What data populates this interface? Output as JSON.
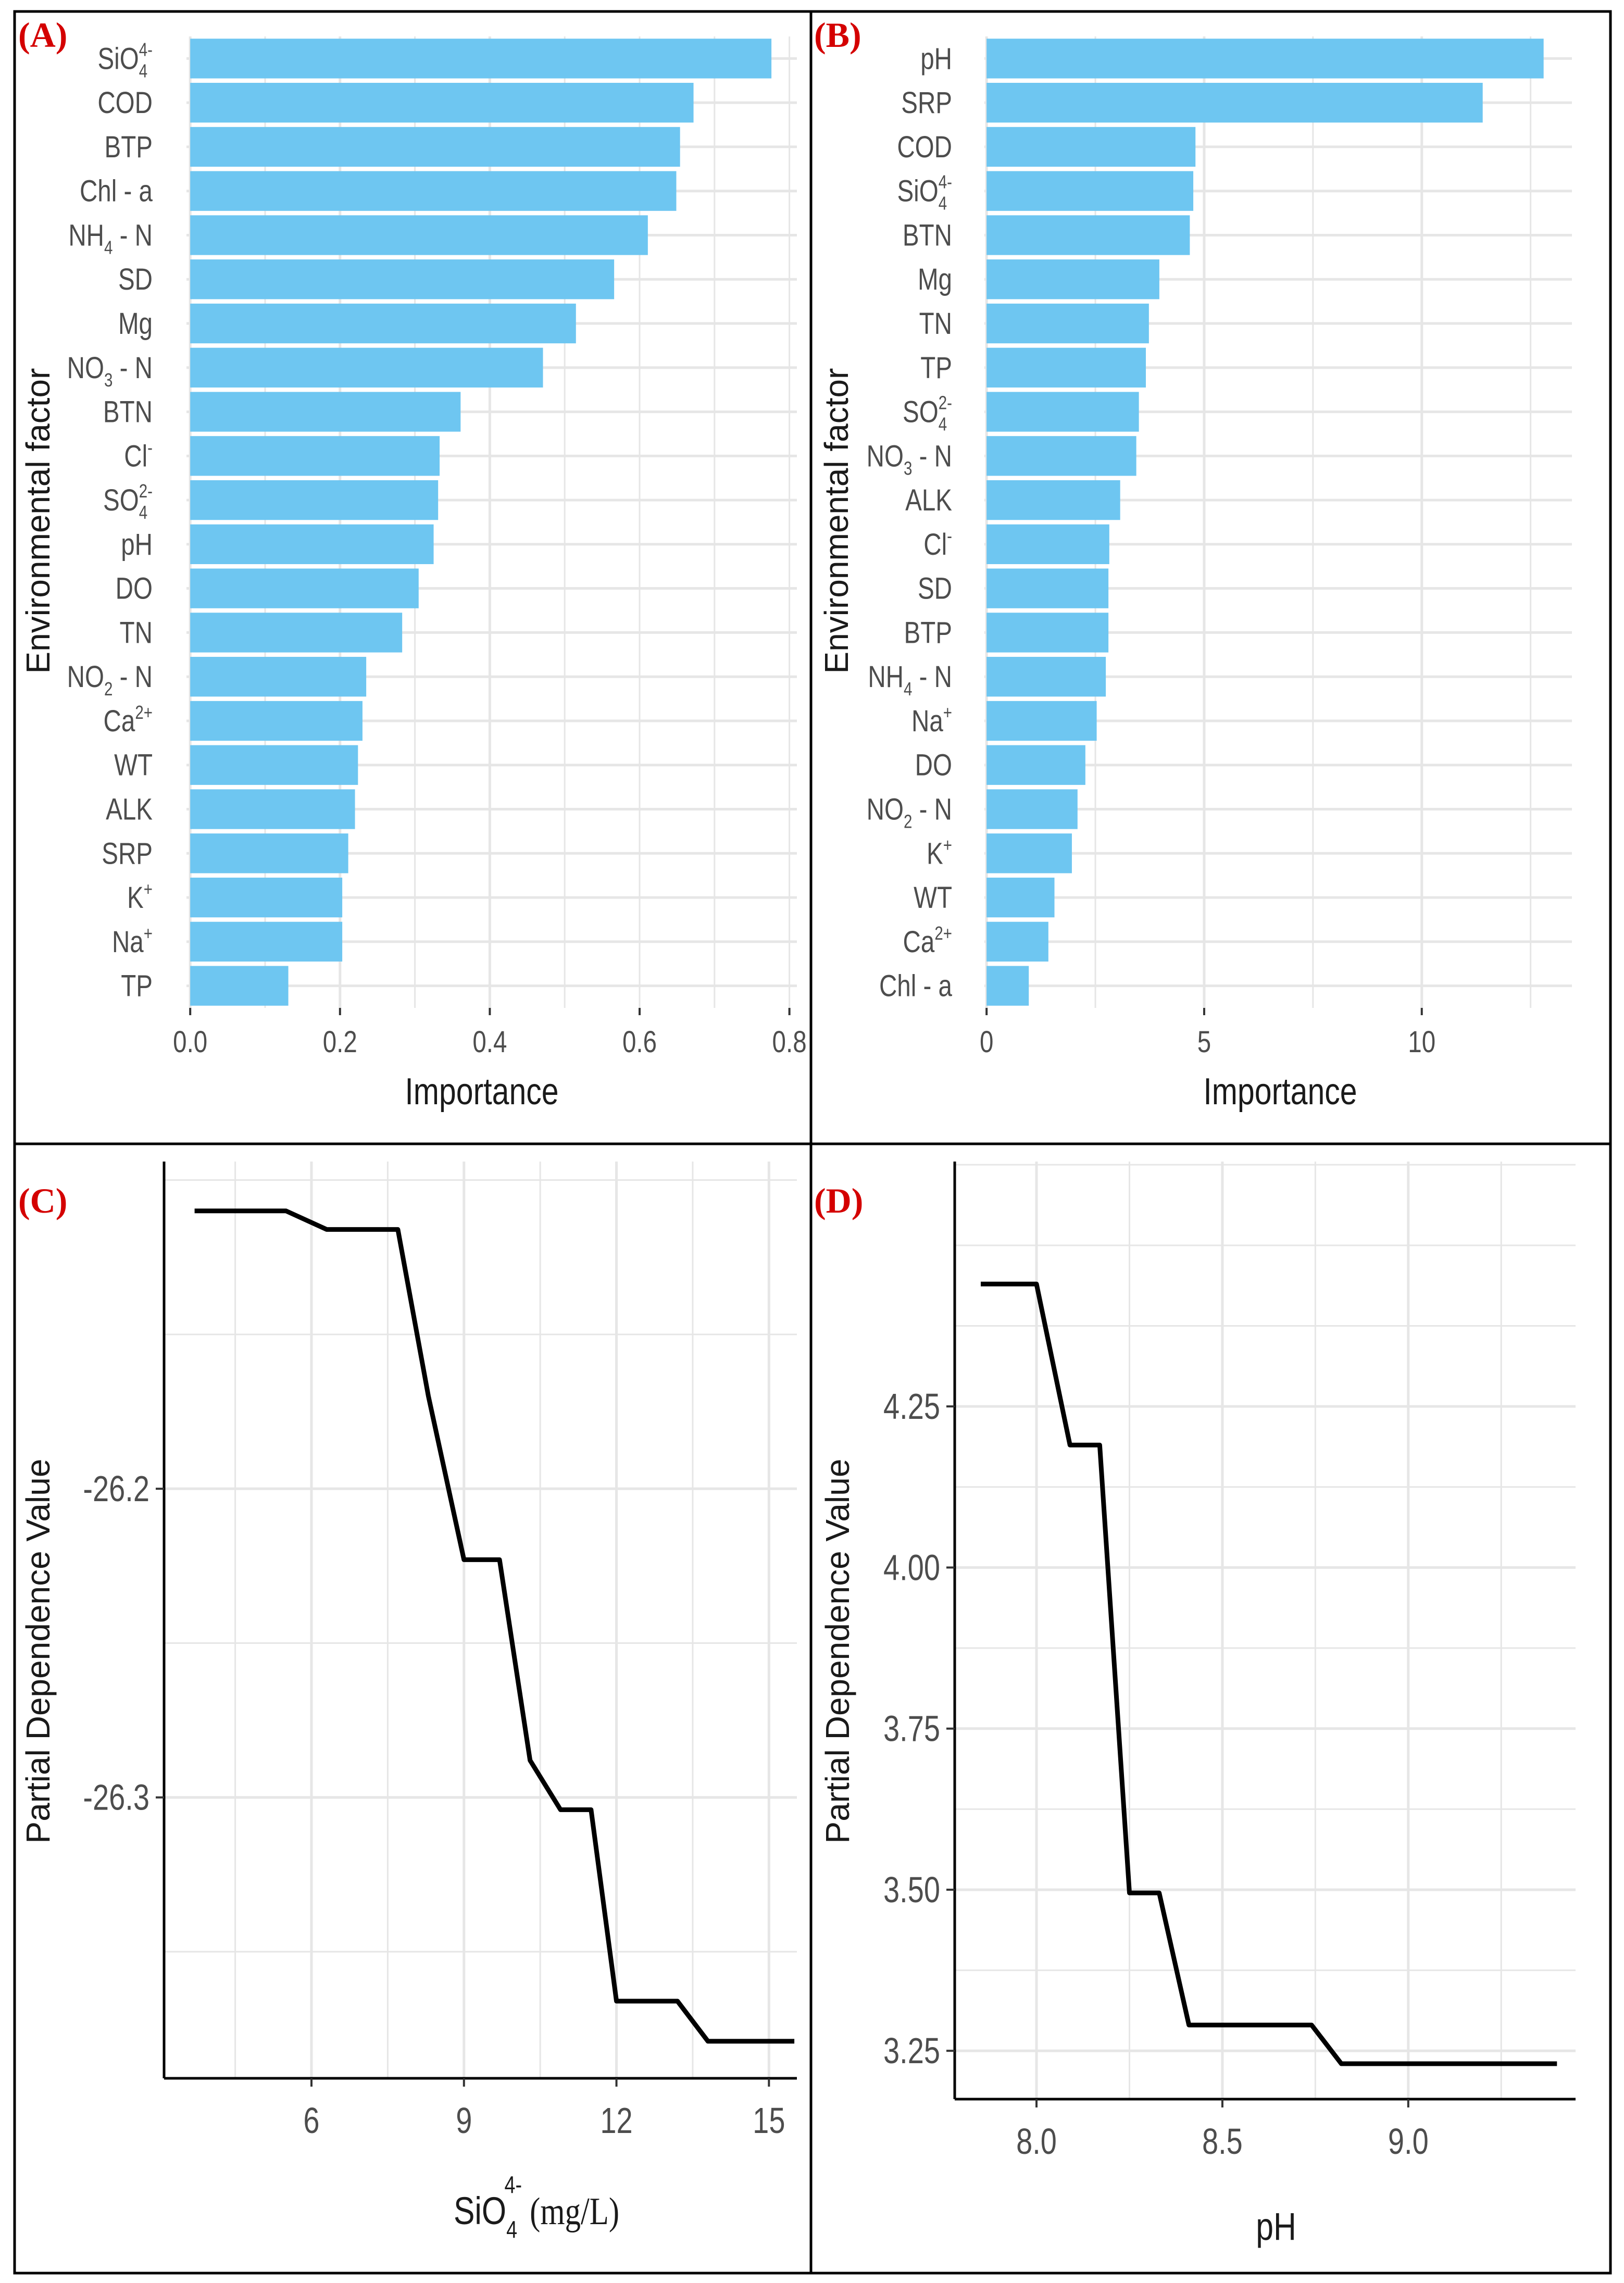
{
  "colors": {
    "bar": "#6ec6f1",
    "line": "#000000",
    "grid": "#e6e6e6",
    "panel_label": "#d40000",
    "frame": "#000000"
  },
  "chart_data": [
    {
      "panel": "(A)",
      "type": "bar",
      "orientation": "horizontal",
      "categories": [
        "SiO4^4-",
        "COD",
        "BTP",
        "Chl - a",
        "NH4 - N",
        "SD",
        "Mg",
        "NO3 - N",
        "BTN",
        "Cl^-",
        "SO4^2-",
        "pH",
        "DO",
        "TN",
        "NO2 - N",
        "Ca^2+",
        "WT",
        "ALK",
        "SRP",
        "K^+",
        "Na^+",
        "TP"
      ],
      "values": [
        0.776,
        0.672,
        0.654,
        0.649,
        0.611,
        0.566,
        0.515,
        0.471,
        0.361,
        0.333,
        0.331,
        0.325,
        0.305,
        0.283,
        0.235,
        0.23,
        0.224,
        0.22,
        0.211,
        0.203,
        0.203,
        0.131
      ],
      "xlabel": "Importance",
      "ylabel": "Environmental factor",
      "xlim": [
        -0.005,
        0.81
      ],
      "xticks": [
        "0.0",
        "0.2",
        "0.4",
        "0.6",
        "0.8"
      ],
      "xtick_values": [
        0,
        0.2,
        0.4,
        0.6,
        0.8
      ]
    },
    {
      "panel": "(B)",
      "type": "bar",
      "orientation": "horizontal",
      "categories": [
        "pH",
        "SRP",
        "COD",
        "SiO4^4-",
        "BTN",
        "Mg",
        "TN",
        "TP",
        "SO4^2-",
        "NO3 - N",
        "ALK",
        "Cl^-",
        "SD",
        "BTP",
        "NH4 - N",
        "Na^+",
        "DO",
        "NO2 - N",
        "K^+",
        "WT",
        "Ca^2+",
        "Chl - a"
      ],
      "values": [
        12.8,
        11.4,
        4.8,
        4.75,
        4.67,
        3.97,
        3.73,
        3.66,
        3.5,
        3.44,
        3.07,
        2.82,
        2.8,
        2.8,
        2.74,
        2.53,
        2.27,
        2.09,
        1.96,
        1.56,
        1.42,
        0.97
      ],
      "xlabel": "Importance",
      "ylabel": "Environmental factor",
      "xlim": [
        -0.05,
        13.45
      ],
      "xticks": [
        "0",
        "5",
        "10"
      ],
      "xtick_values": [
        0,
        5,
        10
      ]
    },
    {
      "panel": "(C)",
      "type": "line",
      "x": [
        3.7,
        5.5,
        6.3,
        7.7,
        8.3,
        9.0,
        9.7,
        10.3,
        10.9,
        11.5,
        12.0,
        13.2,
        13.8,
        15.5
      ],
      "y": [
        -26.11,
        -26.11,
        -26.116,
        -26.116,
        -26.17,
        -26.223,
        -26.223,
        -26.288,
        -26.304,
        -26.304,
        -26.366,
        -26.366,
        -26.379,
        -26.379
      ],
      "xlabel": "SiO4^4- (mg/L)",
      "ylabel": "Partial Dependence Value",
      "xlim": [
        3.1,
        15.55
      ],
      "ylim": [
        -26.391,
        -26.094
      ],
      "xticks": [
        "6",
        "9",
        "12",
        "15"
      ],
      "xtick_values": [
        6,
        9,
        12,
        15
      ],
      "yticks": [
        "-26.2",
        "-26.3"
      ],
      "ytick_values": [
        -26.2,
        -26.3
      ]
    },
    {
      "panel": "(D)",
      "type": "line",
      "x": [
        7.85,
        8.0,
        8.09,
        8.17,
        8.25,
        8.33,
        8.41,
        8.74,
        8.82,
        9.4
      ],
      "y": [
        4.44,
        4.44,
        4.19,
        4.19,
        3.495,
        3.495,
        3.29,
        3.29,
        3.23,
        3.23
      ],
      "xlabel": "pH",
      "ylabel": "Partial Dependence Value",
      "xlim": [
        7.78,
        9.45
      ],
      "ylim": [
        3.175,
        4.63
      ],
      "xticks": [
        "8.0",
        "8.5",
        "9.0"
      ],
      "xtick_values": [
        8.0,
        8.5,
        9.0
      ],
      "yticks": [
        "3.25",
        "3.50",
        "3.75",
        "4.00",
        "4.25"
      ],
      "ytick_values": [
        3.25,
        3.5,
        3.75,
        4.0,
        4.25
      ]
    }
  ]
}
